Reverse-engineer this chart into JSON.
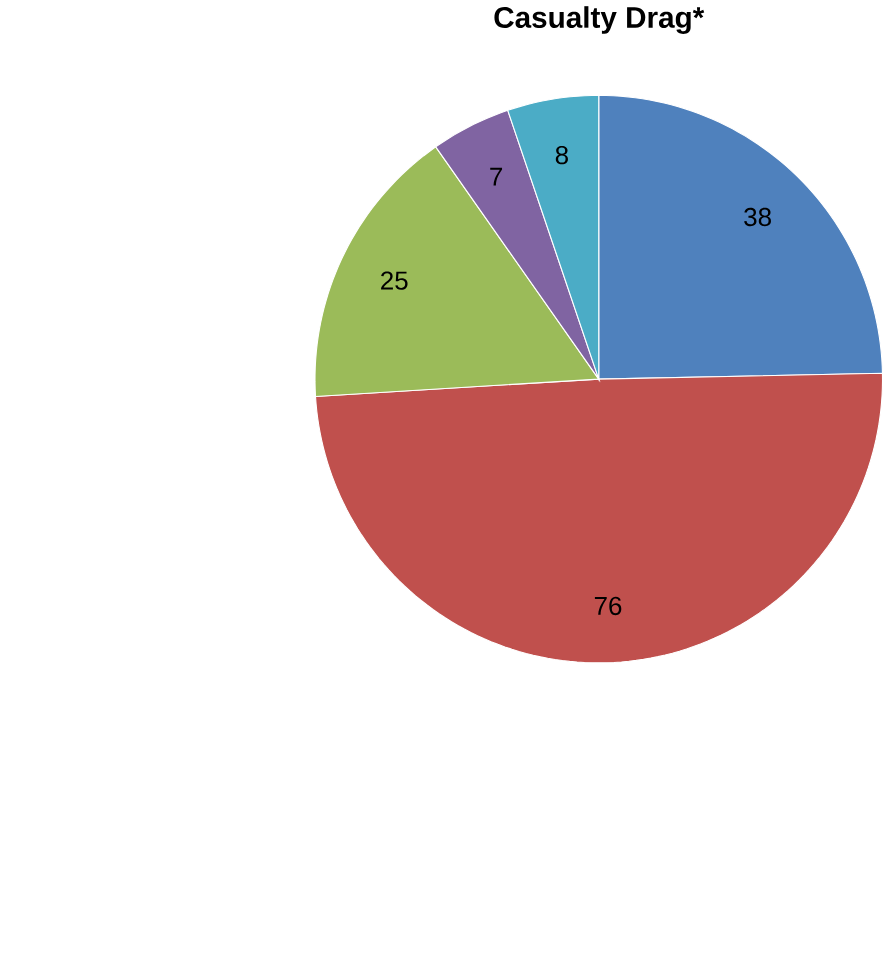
{
  "chart_data": {
    "type": "pie",
    "title": "Casualty Drag*",
    "categories": [
      null,
      null,
      null,
      null,
      null
    ],
    "values": [
      38,
      76,
      25,
      7,
      8
    ],
    "colors": [
      "#4f81bd",
      "#c0504d",
      "#9bbb59",
      "#8064a2",
      "#4bacc6"
    ],
    "data_labels": true
  }
}
